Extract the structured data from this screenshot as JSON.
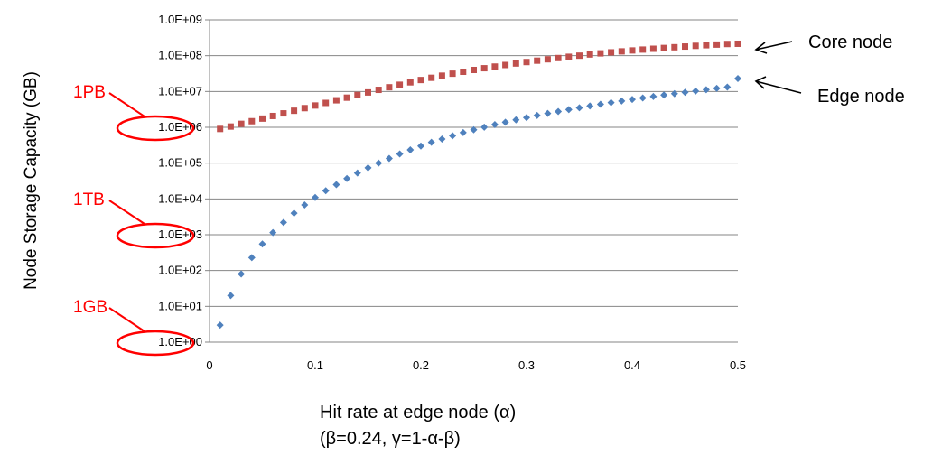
{
  "chart_data": {
    "type": "scatter",
    "title": "",
    "ylabel": "Node Storage Capacity (GB)",
    "xlabel": "Hit rate at edge node (α)",
    "xlabel_sub": "(β=0.24,  γ=1-α-β)",
    "y_scale": "log",
    "ylim": [
      1,
      1000000000
    ],
    "xlim": [
      0,
      0.5
    ],
    "y_ticks": [
      1,
      10,
      100,
      1000,
      10000,
      100000,
      1000000,
      10000000,
      100000000,
      1000000000
    ],
    "y_tick_labels": [
      "1.0E+00",
      "1.0E+01",
      "1.0E+02",
      "1.0E+03",
      "1.0E+04",
      "1.0E+05",
      "1.0E+06",
      "1.0E+07",
      "1.0E+08",
      "1.0E+09"
    ],
    "x_ticks": [
      0,
      0.1,
      0.2,
      0.3,
      0.4,
      0.5
    ],
    "x_tick_labels": [
      "0",
      "0.1",
      "0.2",
      "0.3",
      "0.4",
      "0.5"
    ],
    "grid": "horizontal",
    "x": [
      0.01,
      0.02,
      0.03,
      0.04,
      0.05,
      0.06,
      0.07,
      0.08,
      0.09,
      0.1,
      0.11,
      0.12,
      0.13,
      0.14,
      0.15,
      0.16,
      0.17,
      0.18,
      0.19,
      0.2,
      0.21,
      0.22,
      0.23,
      0.24,
      0.25,
      0.26,
      0.27,
      0.28,
      0.29,
      0.3,
      0.31,
      0.32,
      0.33,
      0.34,
      0.35,
      0.36,
      0.37,
      0.38,
      0.39,
      0.4,
      0.41,
      0.42,
      0.43,
      0.44,
      0.45,
      0.46,
      0.47,
      0.48,
      0.49,
      0.5
    ],
    "series": [
      {
        "name": "Core node",
        "color": "#c0504d",
        "marker": "square",
        "values": [
          900000,
          1050000,
          1250000,
          1480000,
          1750000,
          2070000,
          2450000,
          2900000,
          3430000,
          4060000,
          4800000,
          5680000,
          6720000,
          7950000,
          9400000,
          11100000,
          13100000,
          15400000,
          18000000,
          20900000,
          24100000,
          27600000,
          31400000,
          35500000,
          39900000,
          44600000,
          49600000,
          54900000,
          60500000,
          66400000,
          72600000,
          79100000,
          85900000,
          93000000,
          100000000,
          108000000,
          116000000,
          124000000,
          132000000,
          140000000,
          148000000,
          156000000,
          164000000,
          172000000,
          180000000,
          188000000,
          196000000,
          204000000,
          212000000,
          215000000
        ]
      },
      {
        "name": "Edge node",
        "color": "#4f81bd",
        "marker": "diamond",
        "values": [
          3,
          20,
          80,
          230,
          550,
          1150,
          2200,
          4000,
          6800,
          11000,
          17000,
          25000,
          37000,
          53000,
          74000,
          100000,
          135000,
          180000,
          235000,
          300000,
          380000,
          470000,
          580000,
          710000,
          850000,
          1010000,
          1190000,
          1390000,
          1620000,
          1870000,
          2140000,
          2440000,
          2770000,
          3130000,
          3520000,
          3940000,
          4400000,
          4900000,
          5430000,
          6000000,
          6610000,
          7260000,
          7950000,
          8690000,
          9480000,
          10300000,
          11200000,
          12200000,
          13200000,
          23000000
        ]
      }
    ],
    "series_labels": [
      "Core node",
      "Edge node"
    ],
    "annotations": [
      {
        "text": "1PB",
        "color": "#ff0000",
        "y_value": 1000000
      },
      {
        "text": "1TB",
        "color": "#ff0000",
        "y_value": 1000
      },
      {
        "text": "1GB",
        "color": "#ff0000",
        "y_value": 1
      }
    ],
    "colors": {
      "axis": "#868686",
      "grid": "#868686",
      "annotation": "#ff0000"
    }
  }
}
